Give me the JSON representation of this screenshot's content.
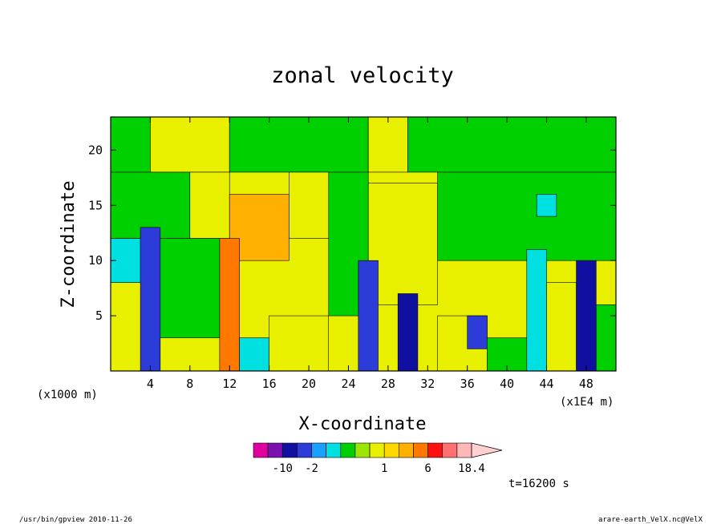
{
  "chart_data": {
    "type": "heatmap",
    "title": "zonal velocity",
    "xlabel": "X-coordinate",
    "ylabel": "Z-coordinate",
    "x_unit_label": "(x1000 m)",
    "x_unit_label_right": "(x1E4 m)",
    "xlim": [
      0,
      51
    ],
    "ylim": [
      0,
      23
    ],
    "x_ticks": [
      4,
      8,
      12,
      16,
      20,
      24,
      28,
      32,
      36,
      40,
      44,
      48
    ],
    "y_ticks": [
      5,
      10,
      15,
      20
    ],
    "colorbar": {
      "colors": [
        "#e000a0",
        "#7b10b0",
        "#1010a0",
        "#2b3cd8",
        "#1aa0ff",
        "#00e0e0",
        "#00d000",
        "#9ae600",
        "#e8f000",
        "#ffd800",
        "#ffb000",
        "#ff7800",
        "#ff1010",
        "#ff7070",
        "#ffb8b8"
      ],
      "tick_labels": [
        "-10",
        "-2",
        "1",
        "6",
        "18.4"
      ],
      "tick_after_index": [
        1,
        3,
        8,
        11,
        14
      ]
    },
    "time_label": "t=16200 s",
    "cells": [
      {
        "x": [
          0,
          4
        ],
        "z": [
          18,
          23
        ],
        "color": "#00d000"
      },
      {
        "x": [
          4,
          12
        ],
        "z": [
          18,
          23
        ],
        "color": "#e8f000"
      },
      {
        "x": [
          12,
          26
        ],
        "z": [
          18,
          23
        ],
        "color": "#00d000"
      },
      {
        "x": [
          26,
          30
        ],
        "z": [
          18,
          23
        ],
        "color": "#e8f000"
      },
      {
        "x": [
          30,
          51
        ],
        "z": [
          18,
          23
        ],
        "color": "#00d000"
      },
      {
        "x": [
          0,
          8
        ],
        "z": [
          12,
          18
        ],
        "color": "#00d000"
      },
      {
        "x": [
          8,
          12
        ],
        "z": [
          12,
          18
        ],
        "color": "#e8f000"
      },
      {
        "x": [
          12,
          18
        ],
        "z": [
          10,
          16
        ],
        "color": "#ffb000"
      },
      {
        "x": [
          18,
          22
        ],
        "z": [
          12,
          18
        ],
        "color": "#e8f000"
      },
      {
        "x": [
          22,
          26
        ],
        "z": [
          5,
          18
        ],
        "color": "#00d000"
      },
      {
        "x": [
          26,
          33
        ],
        "z": [
          6,
          17
        ],
        "color": "#e8f000"
      },
      {
        "x": [
          33,
          51
        ],
        "z": [
          10,
          18
        ],
        "color": "#00d000"
      },
      {
        "x": [
          43,
          45
        ],
        "z": [
          14,
          16
        ],
        "color": "#00e0e0"
      },
      {
        "x": [
          0,
          3
        ],
        "z": [
          8,
          12
        ],
        "color": "#00e0e0"
      },
      {
        "x": [
          3,
          5
        ],
        "z": [
          0,
          13
        ],
        "color": "#2b3cd8"
      },
      {
        "x": [
          5,
          11
        ],
        "z": [
          3,
          12
        ],
        "color": "#00d000"
      },
      {
        "x": [
          11,
          13
        ],
        "z": [
          0,
          12
        ],
        "color": "#ff7800"
      },
      {
        "x": [
          13,
          16
        ],
        "z": [
          0,
          3
        ],
        "color": "#00e0e0"
      },
      {
        "x": [
          16,
          22
        ],
        "z": [
          0,
          5
        ],
        "color": "#e8f000"
      },
      {
        "x": [
          25,
          27
        ],
        "z": [
          0,
          10
        ],
        "color": "#2b3cd8"
      },
      {
        "x": [
          29,
          31
        ],
        "z": [
          0,
          7
        ],
        "color": "#1010a0"
      },
      {
        "x": [
          33,
          38
        ],
        "z": [
          0,
          5
        ],
        "color": "#e8f000"
      },
      {
        "x": [
          36,
          38
        ],
        "z": [
          2,
          5
        ],
        "color": "#2b3cd8"
      },
      {
        "x": [
          38,
          42
        ],
        "z": [
          0,
          3
        ],
        "color": "#00d000"
      },
      {
        "x": [
          42,
          44
        ],
        "z": [
          0,
          11
        ],
        "color": "#00e0e0"
      },
      {
        "x": [
          44,
          47
        ],
        "z": [
          0,
          8
        ],
        "color": "#e8f000"
      },
      {
        "x": [
          47,
          49
        ],
        "z": [
          0,
          10
        ],
        "color": "#1010a0"
      },
      {
        "x": [
          49,
          51
        ],
        "z": [
          0,
          6
        ],
        "color": "#00d000"
      }
    ]
  },
  "footer": {
    "left": "/usr/bin/gpview  2010-11-26",
    "right": "arare-earth_VelX.nc@VelX"
  }
}
